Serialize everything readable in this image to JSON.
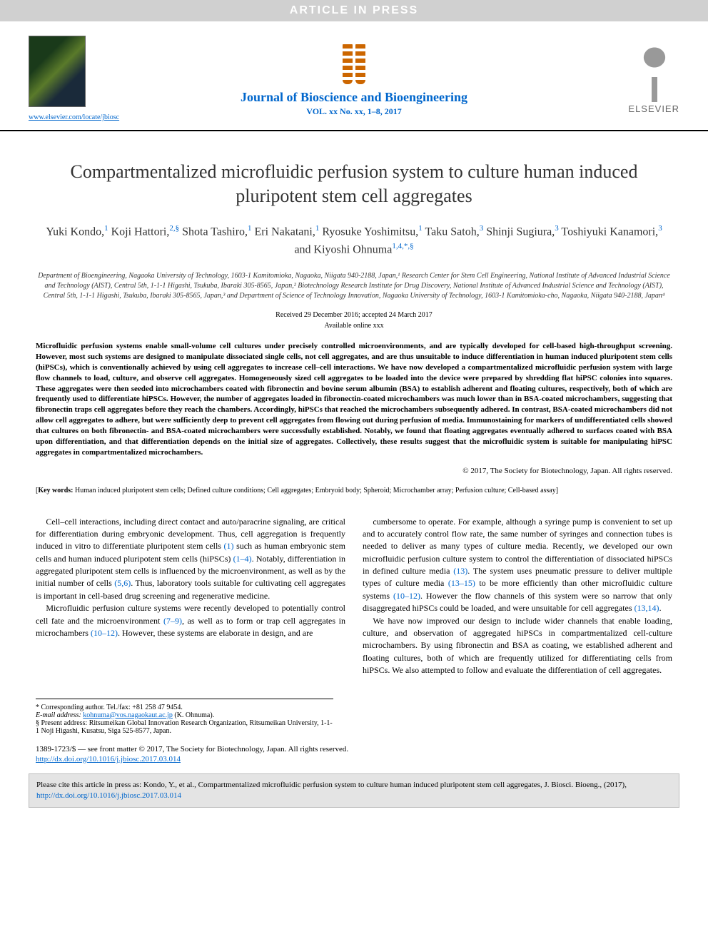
{
  "banner": {
    "text": "ARTICLE IN PRESS",
    "bg": "#d0d0d0",
    "fg": "#ffffff"
  },
  "header": {
    "cover_link": "www.elsevier.com/locate/jbiosc",
    "journal_name": "Journal of Bioscience and Bioengineering",
    "journal_vol": "VOL. xx No. xx, 1–8, 2017",
    "publisher": "ELSEVIER"
  },
  "title": "Compartmentalized microfluidic perfusion system to culture human induced pluripotent stem cell aggregates",
  "authors_html": "Yuki Kondo,<sup>1</sup> Koji Hattori,<sup>2,§</sup> Shota Tashiro,<sup>1</sup> Eri Nakatani,<sup>1</sup> Ryosuke Yoshimitsu,<sup>1</sup> Taku Satoh,<sup>3</sup> Shinji Sugiura,<sup>3</sup> Toshiyuki Kanamori,<sup>3</sup> and Kiyoshi Ohnuma<sup>1,4,*,§</sup>",
  "affiliations": "Department of Bioengineering, Nagaoka University of Technology, 1603-1 Kamitomioka, Nagaoka, Niigata 940-2188, Japan,¹ Research Center for Stem Cell Engineering, National Institute of Advanced Industrial Science and Technology (AIST), Central 5th, 1-1-1 Higashi, Tsukuba, Ibaraki 305-8565, Japan,² Biotechnology Research Institute for Drug Discovery, National Institute of Advanced Industrial Science and Technology (AIST), Central 5th, 1-1-1 Higashi, Tsukuba, Ibaraki 305-8565, Japan,³ and Department of Science of Technology Innovation, Nagaoka University of Technology, 1603-1 Kamitomioka-cho, Nagaoka, Niigata 940-2188, Japan⁴",
  "dates": {
    "received": "Received 29 December 2016; accepted 24 March 2017",
    "online": "Available online xxx"
  },
  "abstract": "Microfluidic perfusion systems enable small-volume cell cultures under precisely controlled microenvironments, and are typically developed for cell-based high-throughput screening. However, most such systems are designed to manipulate dissociated single cells, not cell aggregates, and are thus unsuitable to induce differentiation in human induced pluripotent stem cells (hiPSCs), which is conventionally achieved by using cell aggregates to increase cell–cell interactions. We have now developed a compartmentalized microfluidic perfusion system with large flow channels to load, culture, and observe cell aggregates. Homogeneously sized cell aggregates to be loaded into the device were prepared by shredding flat hiPSC colonies into squares. These aggregates were then seeded into microchambers coated with fibronectin and bovine serum albumin (BSA) to establish adherent and floating cultures, respectively, both of which are frequently used to differentiate hiPSCs. However, the number of aggregates loaded in fibronectin-coated microchambers was much lower than in BSA-coated microchambers, suggesting that fibronectin traps cell aggregates before they reach the chambers. Accordingly, hiPSCs that reached the microchambers subsequently adhered. In contrast, BSA-coated microchambers did not allow cell aggregates to adhere, but were sufficiently deep to prevent cell aggregates from flowing out during perfusion of media. Immunostaining for markers of undifferentiated cells showed that cultures on both fibronectin- and BSA-coated microchambers were successfully established. Notably, we found that floating aggregates eventually adhered to surfaces coated with BSA upon differentiation, and that differentiation depends on the initial size of aggregates. Collectively, these results suggest that the microfluidic system is suitable for manipulating hiPSC aggregates in compartmentalized microchambers.",
  "copyright": "© 2017, The Society for Biotechnology, Japan. All rights reserved.",
  "keywords_label": "Key words:",
  "keywords": "Human induced pluripotent stem cells; Defined culture conditions; Cell aggregates; Embryoid body; Spheroid; Microchamber array; Perfusion culture; Cell-based assay]",
  "body": {
    "col1": [
      "Cell–cell interactions, including direct contact and auto/paracrine signaling, are critical for differentiation during embryonic development. Thus, cell aggregation is frequently induced in vitro to differentiate pluripotent stem cells (1) such as human embryonic stem cells and human induced pluripotent stem cells (hiPSCs) (1–4). Notably, differentiation in aggregated pluripotent stem cells is influenced by the microenvironment, as well as by the initial number of cells (5,6). Thus, laboratory tools suitable for cultivating cell aggregates is important in cell-based drug screening and regenerative medicine.",
      "Microfluidic perfusion culture systems were recently developed to potentially control cell fate and the microenvironment (7–9), as well as to form or trap cell aggregates in microchambers (10–12). However, these systems are elaborate in design, and are"
    ],
    "col2": [
      "cumbersome to operate. For example, although a syringe pump is convenient to set up and to accurately control flow rate, the same number of syringes and connection tubes is needed to deliver as many types of culture media. Recently, we developed our own microfluidic perfusion culture system to control the differentiation of dissociated hiPSCs in defined culture media (13). The system uses pneumatic pressure to deliver multiple types of culture media (13–15) to be more efficiently than other microfluidic culture systems (10–12). However the flow channels of this system were so narrow that only disaggregated hiPSCs could be loaded, and were unsuitable for cell aggregates (13,14).",
      "We have now improved our design to include wider channels that enable loading, culture, and observation of aggregated hiPSCs in compartmentalized cell-culture microchambers. By using fibronectin and BSA as coating, we established adherent and floating cultures, both of which are frequently utilized for differentiating cells from hiPSCs. We also attempted to follow and evaluate the differentiation of cell aggregates."
    ]
  },
  "footnotes": {
    "corresponding": "* Corresponding author. Tel./fax: +81 258 47 9454.",
    "email_label": "E-mail address:",
    "email": "kohnuma@vos.nagaokaut.ac.jp",
    "email_who": "(K. Ohnuma).",
    "present": "§ Present address: Ritsumeikan Global Innovation Research Organization, Ritsumeikan University, 1-1-1 Noji Higashi, Kusatsu, Siga 525-8577, Japan."
  },
  "issn": "1389-1723/$ — see front matter © 2017, The Society for Biotechnology, Japan. All rights reserved.",
  "doi": "http://dx.doi.org/10.1016/j.jbiosc.2017.03.014",
  "citebox": {
    "text": "Please cite this article in press as: Kondo, Y., et al., Compartmentalized microfluidic perfusion system to culture human induced pluripotent stem cell aggregates, J. Biosci. Bioeng., (2017), ",
    "doi": "http://dx.doi.org/10.1016/j.jbiosc.2017.03.014"
  },
  "colors": {
    "link": "#0066cc",
    "text": "#000000",
    "banner_bg": "#d0d0d0",
    "citebox_bg": "#e4e4e4"
  }
}
